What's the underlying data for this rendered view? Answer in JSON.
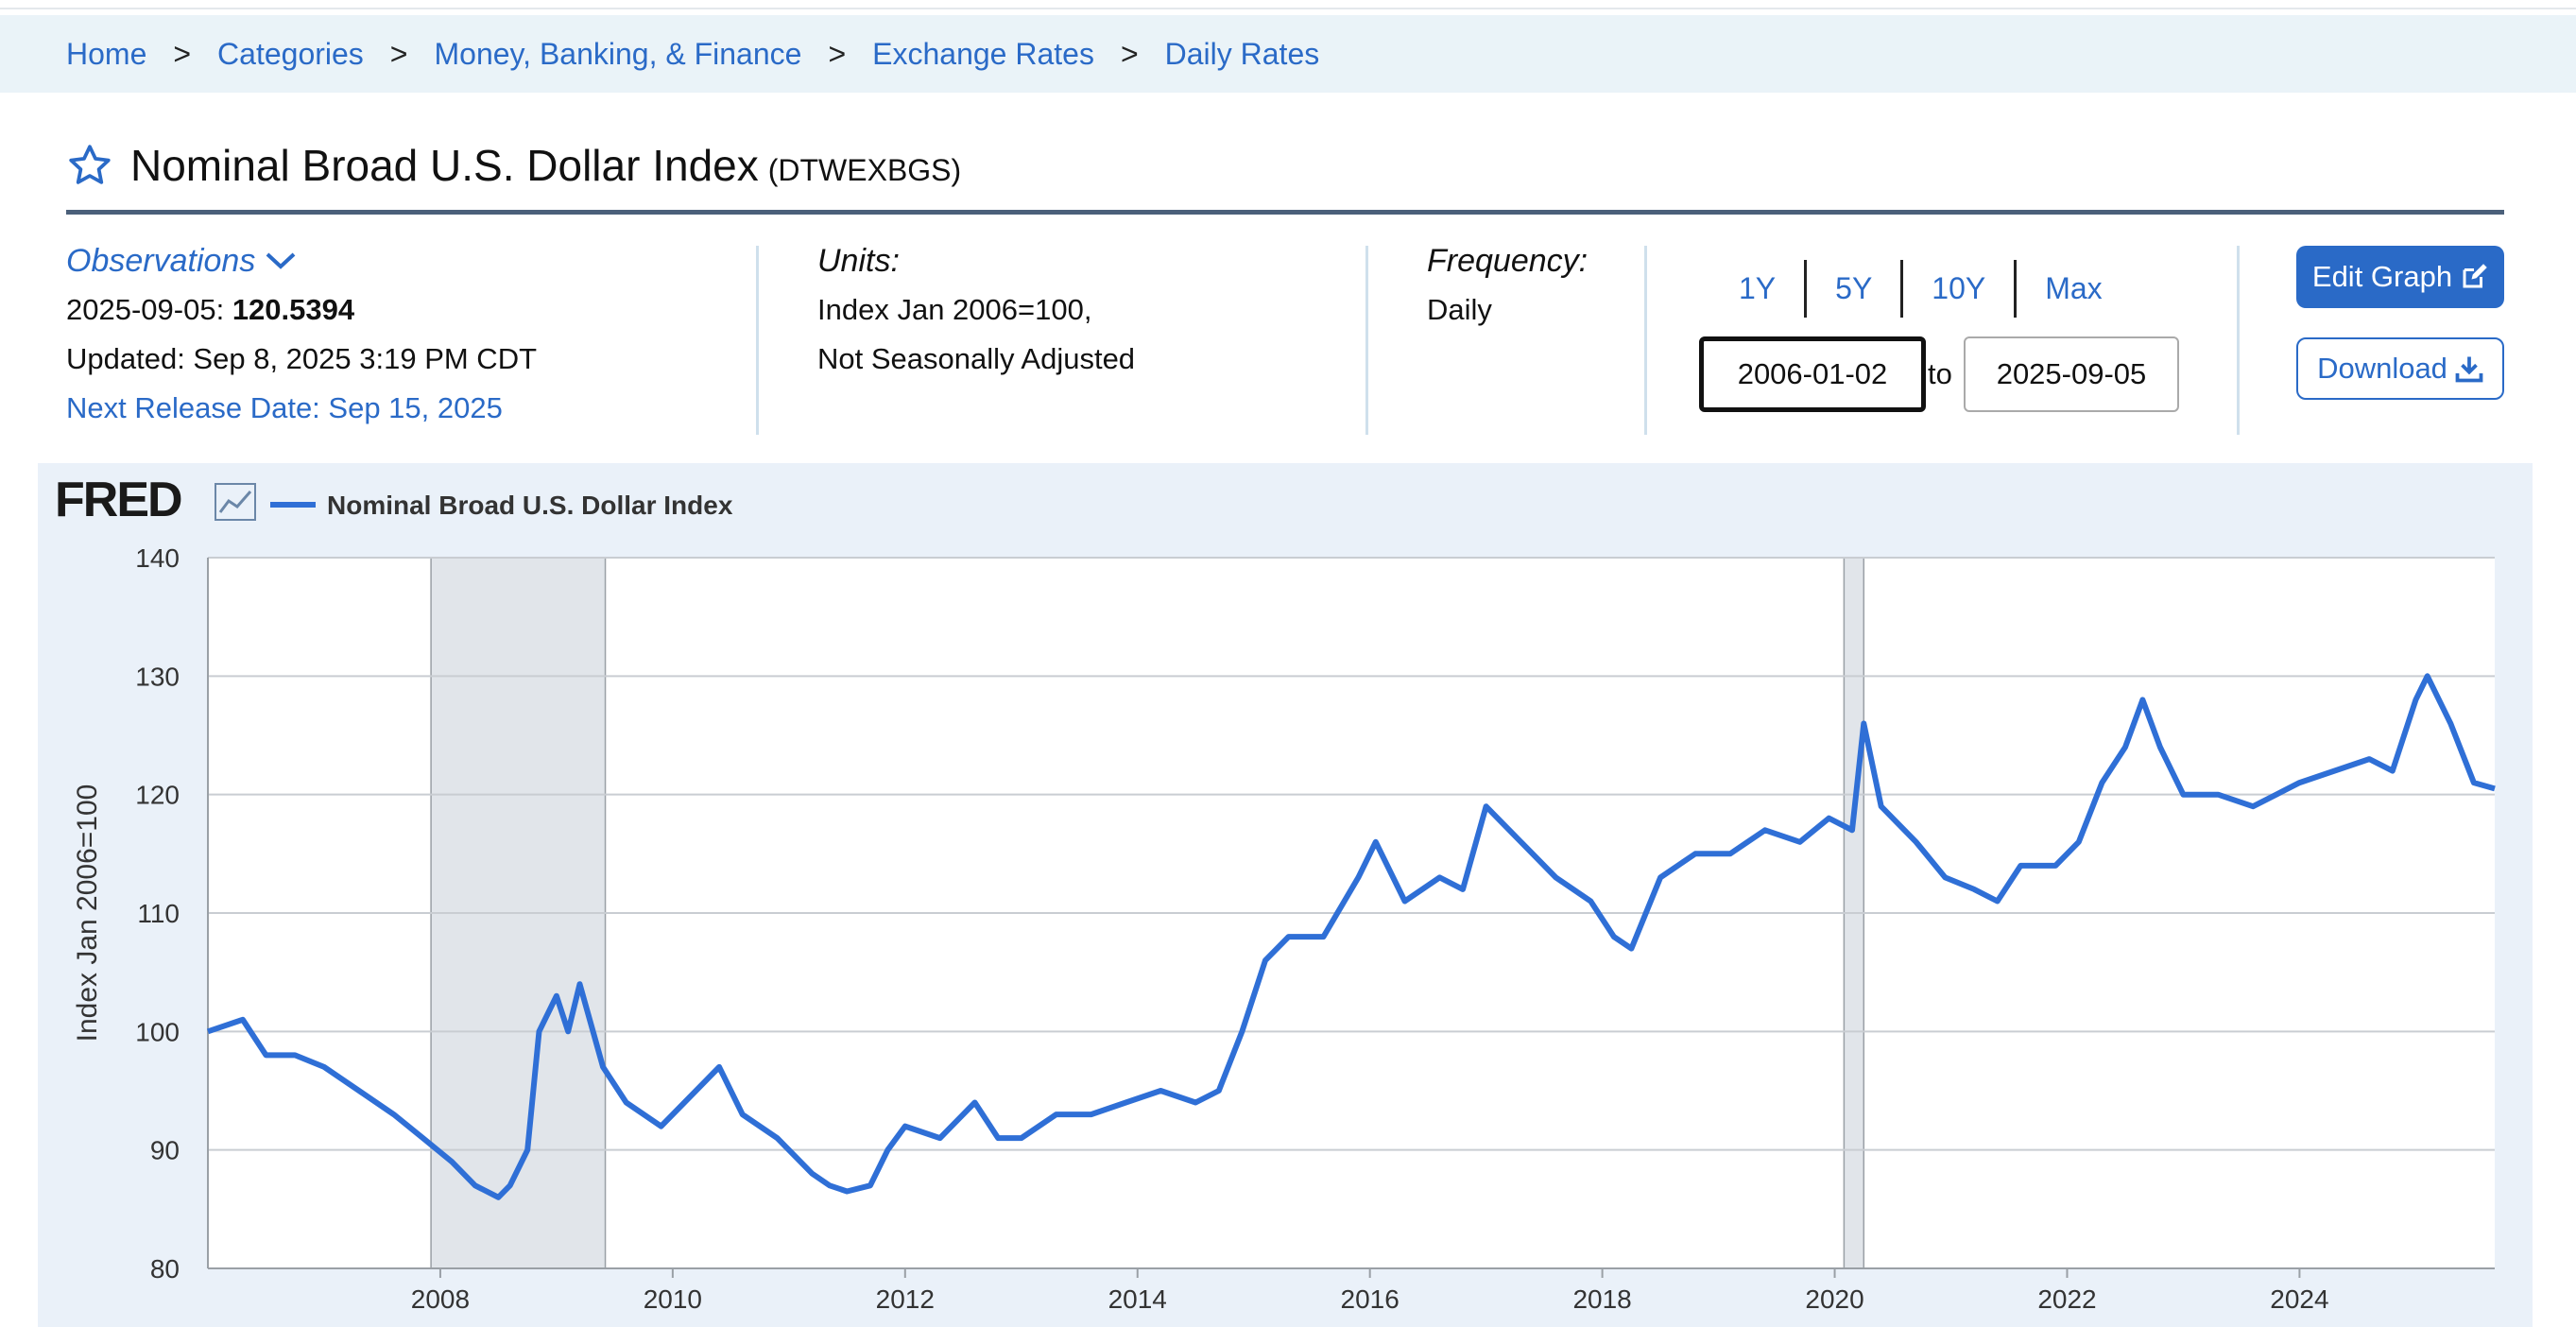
{
  "breadcrumb": [
    {
      "label": "Home"
    },
    {
      "label": "Categories"
    },
    {
      "label": "Money, Banking, & Finance"
    },
    {
      "label": "Exchange Rates"
    },
    {
      "label": "Daily Rates"
    }
  ],
  "breadcrumb_sep": ">",
  "series": {
    "title": "Nominal Broad U.S. Dollar Index",
    "code": "(DTWEXBGS)"
  },
  "observations": {
    "label": "Observations",
    "date": "2025-09-05:",
    "value": "120.5394",
    "updated": "Updated: Sep 8, 2025 3:19 PM CDT",
    "next_release": "Next Release Date: Sep 15, 2025"
  },
  "units": {
    "label": "Units:",
    "line1": "Index Jan 2006=100,",
    "line2": "Not Seasonally Adjusted"
  },
  "frequency": {
    "label": "Frequency:",
    "value": "Daily"
  },
  "ranges": [
    "1Y",
    "5Y",
    "10Y",
    "Max"
  ],
  "date_range": {
    "start": "2006-01-02",
    "to": "to",
    "end": "2025-09-05"
  },
  "buttons": {
    "edit": "Edit Graph",
    "download": "Download"
  },
  "colors": {
    "accent": "#2a6ac7",
    "line": "#2f6fd6",
    "recession": "#e1e5ea"
  },
  "chart_data": {
    "type": "line",
    "brand": "FRED",
    "legend": "Nominal Broad U.S. Dollar Index",
    "legend_position": "top-left",
    "ylabel": "Index Jan 2006=100",
    "ylim": [
      80,
      140
    ],
    "yticks": [
      80,
      90,
      100,
      110,
      120,
      130,
      140
    ],
    "xlim": [
      2006.0,
      2025.68
    ],
    "xticks": [
      "2008",
      "2010",
      "2012",
      "2014",
      "2016",
      "2018",
      "2020",
      "2022",
      "2024"
    ],
    "grid": true,
    "recessions": [
      [
        2007.92,
        2009.42
      ],
      [
        2020.08,
        2020.25
      ]
    ],
    "series": [
      {
        "name": "Nominal Broad U.S. Dollar Index",
        "x": [
          2006.0,
          2006.3,
          2006.5,
          2006.75,
          2007.0,
          2007.3,
          2007.6,
          2007.85,
          2008.1,
          2008.3,
          2008.5,
          2008.6,
          2008.75,
          2008.85,
          2009.0,
          2009.1,
          2009.2,
          2009.4,
          2009.6,
          2009.9,
          2010.2,
          2010.4,
          2010.6,
          2010.9,
          2011.2,
          2011.35,
          2011.5,
          2011.7,
          2011.85,
          2012.0,
          2012.3,
          2012.6,
          2012.8,
          2013.0,
          2013.3,
          2013.6,
          2013.9,
          2014.2,
          2014.5,
          2014.7,
          2014.9,
          2015.1,
          2015.3,
          2015.6,
          2015.9,
          2016.05,
          2016.3,
          2016.6,
          2016.8,
          2017.0,
          2017.3,
          2017.6,
          2017.9,
          2018.1,
          2018.25,
          2018.5,
          2018.8,
          2019.1,
          2019.4,
          2019.7,
          2019.95,
          2020.15,
          2020.25,
          2020.4,
          2020.7,
          2020.95,
          2021.2,
          2021.4,
          2021.6,
          2021.9,
          2022.1,
          2022.3,
          2022.5,
          2022.65,
          2022.8,
          2023.0,
          2023.3,
          2023.6,
          2023.8,
          2024.0,
          2024.3,
          2024.6,
          2024.8,
          2025.0,
          2025.1,
          2025.3,
          2025.5,
          2025.68
        ],
        "values": [
          100,
          101,
          98,
          98,
          97,
          95,
          93,
          91,
          89,
          87,
          86,
          87,
          90,
          100,
          103,
          100,
          104,
          97,
          94,
          92,
          95,
          97,
          93,
          91,
          88,
          87,
          86.5,
          87,
          90,
          92,
          91,
          94,
          91,
          91,
          93,
          93,
          94,
          95,
          94,
          95,
          100,
          106,
          108,
          108,
          113,
          116,
          111,
          113,
          112,
          119,
          116,
          113,
          111,
          108,
          107,
          113,
          115,
          115,
          117,
          116,
          118,
          117,
          126,
          119,
          116,
          113,
          112,
          111,
          114,
          114,
          116,
          121,
          124,
          128,
          124,
          120,
          120,
          119,
          120,
          121,
          122,
          123,
          122,
          128,
          130,
          126,
          121,
          120.5
        ]
      }
    ]
  }
}
